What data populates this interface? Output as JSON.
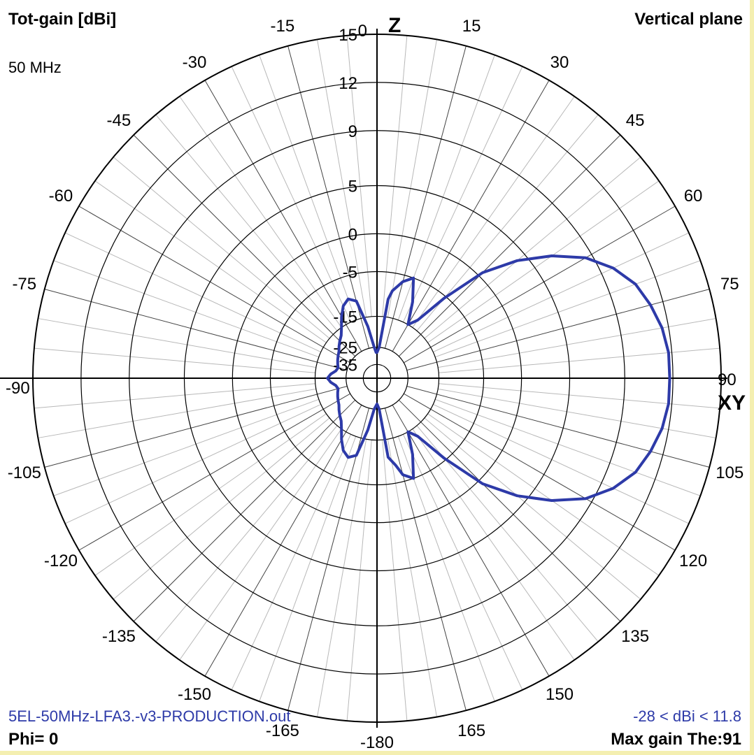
{
  "header": {
    "title": "Tot-gain [dBi]",
    "frequency": "50 MHz",
    "plane": "Vertical plane"
  },
  "footer": {
    "filename": "5EL-50MHz-LFA3.-v3-PRODUCTION.out",
    "phi": "Phi= 0",
    "range": "-28 < dBi < 11.8",
    "max_gain": "Max gain The:91"
  },
  "axis_labels": {
    "z": "Z",
    "xy": "XY"
  },
  "colors": {
    "pattern": "#2d3aa8",
    "grid": "#000000",
    "frame": "#f4efb0"
  },
  "chart_data": {
    "type": "polar",
    "title": "Tot-gain [dBi]",
    "subtitle": "Vertical plane",
    "units": "dBi",
    "angle_labels": [
      {
        "angle": 0,
        "label": "0"
      },
      {
        "angle": 15,
        "label": "15"
      },
      {
        "angle": 30,
        "label": "30"
      },
      {
        "angle": 45,
        "label": "45"
      },
      {
        "angle": 60,
        "label": "60"
      },
      {
        "angle": 75,
        "label": "75"
      },
      {
        "angle": 90,
        "label": "90"
      },
      {
        "angle": 105,
        "label": "105"
      },
      {
        "angle": 120,
        "label": "120"
      },
      {
        "angle": 135,
        "label": "135"
      },
      {
        "angle": 150,
        "label": "150"
      },
      {
        "angle": 165,
        "label": "165"
      },
      {
        "angle": 180,
        "label": "-180"
      },
      {
        "angle": -165,
        "label": "-165"
      },
      {
        "angle": -150,
        "label": "-150"
      },
      {
        "angle": -135,
        "label": "-135"
      },
      {
        "angle": -120,
        "label": "-120"
      },
      {
        "angle": -105,
        "label": "-105"
      },
      {
        "angle": -90,
        "label": "-90"
      },
      {
        "angle": -75,
        "label": "-75"
      },
      {
        "angle": -60,
        "label": "-60"
      },
      {
        "angle": -45,
        "label": "-45"
      },
      {
        "angle": -30,
        "label": "-30"
      },
      {
        "angle": -15,
        "label": "-15"
      }
    ],
    "rings_dbi": [
      15,
      12,
      9,
      5,
      0,
      -5,
      -15,
      -25,
      -35
    ],
    "ring_labels": [
      "15",
      "12",
      "9",
      "5",
      "0",
      "-5",
      "-15",
      "-25",
      "-35"
    ],
    "ring_label_fraction": [
      1.0,
      0.86,
      0.72,
      0.56,
      0.42,
      0.31,
      0.18,
      0.09,
      0.04
    ],
    "grid": true,
    "series": [
      {
        "theta": [
          0,
          4,
          8,
          10,
          15,
          20,
          25,
          30,
          35,
          40,
          45,
          50,
          55,
          60,
          65,
          70,
          75,
          80,
          85,
          90,
          95,
          100,
          105,
          110,
          115,
          120,
          125,
          130,
          135,
          140,
          145,
          150,
          155,
          160,
          165,
          168,
          172,
          176,
          180,
          -175,
          -170,
          -165,
          -160,
          -155,
          -150,
          -145,
          -140,
          -135,
          -130,
          -125,
          -120,
          -115,
          -110,
          -105,
          -100,
          -95,
          -90,
          -85,
          -80,
          -75,
          -70,
          -65,
          -60,
          -55,
          -50,
          -45,
          -40,
          -35,
          -30,
          -25,
          -20,
          -15,
          -10,
          -5,
          -2
        ],
        "dbi": [
          -28,
          -25,
          -11,
          -9,
          -6.5,
          -5,
          -10,
          -15,
          -13,
          -5.5,
          0.5,
          4,
          6.5,
          8.5,
          9.8,
          10.7,
          11.2,
          11.6,
          11.8,
          11.8,
          11.8,
          11.6,
          11.2,
          10.7,
          9.8,
          8.5,
          6.5,
          4,
          0.5,
          -5.5,
          -13,
          -15,
          -10,
          -5,
          -6.5,
          -9,
          -11,
          -25,
          -28,
          -25,
          -18,
          -11,
          -10,
          -11,
          -13,
          -15,
          -17,
          -18,
          -19,
          -20,
          -20.5,
          -21,
          -21.5,
          -22,
          -21.5,
          -20,
          -19,
          -20,
          -21.5,
          -22,
          -21.5,
          -21,
          -20.5,
          -20,
          -19,
          -18,
          -17,
          -15,
          -13,
          -11,
          -10,
          -11,
          -18,
          -25,
          -28
        ]
      }
    ]
  }
}
